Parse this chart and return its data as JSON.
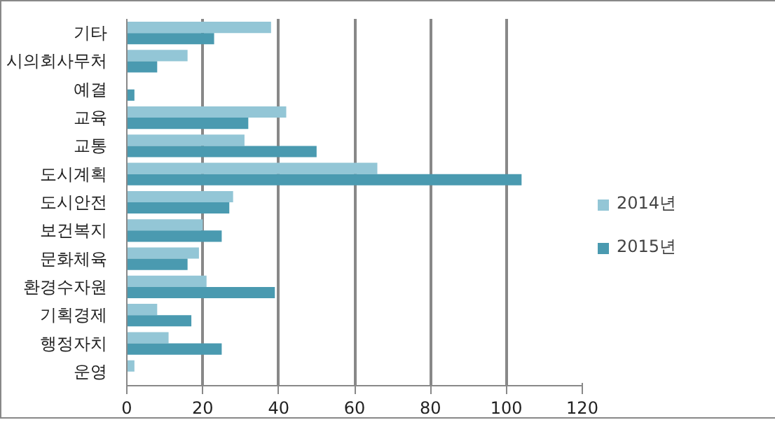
{
  "chart_data": {
    "type": "bar",
    "orientation": "horizontal",
    "categories": [
      "기타",
      "시의회사무처",
      "예결",
      "교육",
      "교통",
      "도시계획",
      "도시안전",
      "보건복지",
      "문화체육",
      "환경수자원",
      "기획경제",
      "행정자치",
      "운영"
    ],
    "series": [
      {
        "name": "2014년",
        "color": "#93c6d6",
        "values": [
          38,
          16,
          null,
          42,
          31,
          66,
          28,
          20,
          19,
          21,
          8,
          11,
          2
        ]
      },
      {
        "name": "2015년",
        "color": "#4a9ab0",
        "values": [
          23,
          8,
          2,
          32,
          50,
          104,
          27,
          25,
          16,
          39,
          17,
          25,
          null
        ]
      }
    ],
    "xlim": [
      0,
      120
    ],
    "xticks": [
      0,
      20,
      40,
      60,
      80,
      100,
      120
    ],
    "grid": "x",
    "legend": "right"
  }
}
